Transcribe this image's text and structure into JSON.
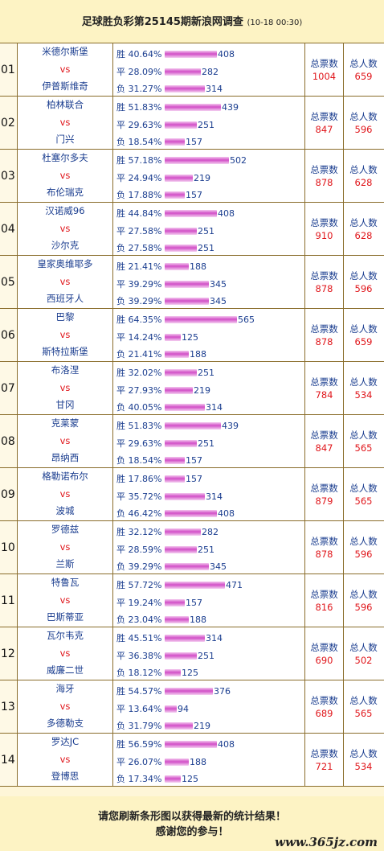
{
  "header": {
    "title": "足球胜负彩第25145期新浪网调查",
    "datetime": "(10-18 00:30)"
  },
  "labels": {
    "vs": "vs",
    "win": "胜",
    "draw": "平",
    "loss": "负",
    "total_votes": "总票数",
    "total_people": "总人数"
  },
  "matches": [
    {
      "no": "01",
      "home": "米德尔斯堡",
      "away": "伊普斯维奇",
      "win_pct": "40.64%",
      "win": "408",
      "draw_pct": "28.09%",
      "draw": "282",
      "loss_pct": "31.27%",
      "loss": "314",
      "votes": "1004",
      "people": "659"
    },
    {
      "no": "02",
      "home": "柏林联合",
      "away": "门兴",
      "win_pct": "51.83%",
      "win": "439",
      "draw_pct": "29.63%",
      "draw": "251",
      "loss_pct": "18.54%",
      "loss": "157",
      "votes": "847",
      "people": "596"
    },
    {
      "no": "03",
      "home": "杜塞尔多夫",
      "away": "布伦瑞克",
      "win_pct": "57.18%",
      "win": "502",
      "draw_pct": "24.94%",
      "draw": "219",
      "loss_pct": "17.88%",
      "loss": "157",
      "votes": "878",
      "people": "628"
    },
    {
      "no": "04",
      "home": "汉诺威96",
      "away": "沙尔克",
      "win_pct": "44.84%",
      "win": "408",
      "draw_pct": "27.58%",
      "draw": "251",
      "loss_pct": "27.58%",
      "loss": "251",
      "votes": "910",
      "people": "628"
    },
    {
      "no": "05",
      "home": "皇家奥维耶多",
      "away": "西班牙人",
      "win_pct": "21.41%",
      "win": "188",
      "draw_pct": "39.29%",
      "draw": "345",
      "loss_pct": "39.29%",
      "loss": "345",
      "votes": "878",
      "people": "596"
    },
    {
      "no": "06",
      "home": "巴黎",
      "away": "斯特拉斯堡",
      "win_pct": "64.35%",
      "win": "565",
      "draw_pct": "14.24%",
      "draw": "125",
      "loss_pct": "21.41%",
      "loss": "188",
      "votes": "878",
      "people": "659"
    },
    {
      "no": "07",
      "home": "布洛涅",
      "away": "甘冈",
      "win_pct": "32.02%",
      "win": "251",
      "draw_pct": "27.93%",
      "draw": "219",
      "loss_pct": "40.05%",
      "loss": "314",
      "votes": "784",
      "people": "534"
    },
    {
      "no": "08",
      "home": "克莱蒙",
      "away": "昂纳西",
      "win_pct": "51.83%",
      "win": "439",
      "draw_pct": "29.63%",
      "draw": "251",
      "loss_pct": "18.54%",
      "loss": "157",
      "votes": "847",
      "people": "565"
    },
    {
      "no": "09",
      "home": "格勒诺布尔",
      "away": "波城",
      "win_pct": "17.86%",
      "win": "157",
      "draw_pct": "35.72%",
      "draw": "314",
      "loss_pct": "46.42%",
      "loss": "408",
      "votes": "879",
      "people": "565"
    },
    {
      "no": "10",
      "home": "罗德兹",
      "away": "兰斯",
      "win_pct": "32.12%",
      "win": "282",
      "draw_pct": "28.59%",
      "draw": "251",
      "loss_pct": "39.29%",
      "loss": "345",
      "votes": "878",
      "people": "596"
    },
    {
      "no": "11",
      "home": "特鲁瓦",
      "away": "巴斯蒂亚",
      "win_pct": "57.72%",
      "win": "471",
      "draw_pct": "19.24%",
      "draw": "157",
      "loss_pct": "23.04%",
      "loss": "188",
      "votes": "816",
      "people": "596"
    },
    {
      "no": "12",
      "home": "瓦尔韦克",
      "away": "威廉二世",
      "win_pct": "45.51%",
      "win": "314",
      "draw_pct": "36.38%",
      "draw": "251",
      "loss_pct": "18.12%",
      "loss": "125",
      "votes": "690",
      "people": "502"
    },
    {
      "no": "13",
      "home": "海牙",
      "away": "多德勒支",
      "win_pct": "54.57%",
      "win": "376",
      "draw_pct": "13.64%",
      "draw": "94",
      "loss_pct": "31.79%",
      "loss": "219",
      "votes": "689",
      "people": "565"
    },
    {
      "no": "14",
      "home": "罗达JC",
      "away": "登博思",
      "win_pct": "56.59%",
      "win": "408",
      "draw_pct": "26.07%",
      "draw": "188",
      "loss_pct": "17.34%",
      "loss": "125",
      "votes": "721",
      "people": "534"
    }
  ],
  "footer": {
    "line1": "请您刷新条形图以获得最新的统计结果！",
    "line2": "感谢您的参与！",
    "watermark": "www.365jz.com"
  },
  "colors": {
    "bar": "#d24fc7",
    "team": "#1a3d8f",
    "vs": "#e0161b",
    "border": "#8a6d2b"
  }
}
